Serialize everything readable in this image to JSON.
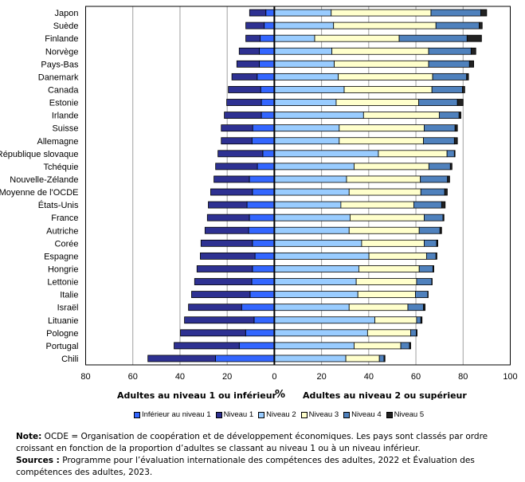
{
  "chart_data": {
    "type": "bar",
    "orientation": "horizontal",
    "stacked": "diverging",
    "title": "",
    "xlabel_left": "Adultes au niveau 1 ou inférieur",
    "xlabel_center": "%",
    "xlabel_right": "Adultes au niveau 2 ou supérieur",
    "xlim": [
      -80,
      100
    ],
    "xticks": [
      -80,
      -60,
      -40,
      -20,
      0,
      20,
      40,
      60,
      80,
      100
    ],
    "xtick_labels": [
      "80",
      "60",
      "40",
      "20",
      "0",
      "20",
      "40",
      "60",
      "80",
      "100"
    ],
    "grid": true,
    "legend_position": "bottom",
    "categories": [
      "Japon",
      "Suède",
      "Finlande",
      "Norvège",
      "Pays-Bas",
      "Danemark",
      "Canada",
      "Estonie",
      "Irlande",
      "Suisse",
      "Allemagne",
      "République slovaque",
      "Tchéquie",
      "Nouvelle-Zélande",
      "Moyenne de l'OCDE",
      "États-Unis",
      "France",
      "Autriche",
      "Corée",
      "Espagne",
      "Hongrie",
      "Lettonie",
      "Italie",
      "Israël",
      "Lituanie",
      "Pologne",
      "Portugal",
      "Chili"
    ],
    "series": [
      {
        "name": "Inférieur au niveau 1",
        "side": "negative",
        "color": "#3366ff",
        "values": [
          3.6,
          4.3,
          6.0,
          6.4,
          6.4,
          7.3,
          5.8,
          5.5,
          5.5,
          9.2,
          9.5,
          4.9,
          7.2,
          10.6,
          9.3,
          11.6,
          10.6,
          10.9,
          9.3,
          8.2,
          9.3,
          9.6,
          10.3,
          13.9,
          8.6,
          12.2,
          14.9,
          25.0
        ]
      },
      {
        "name": "Niveau 1",
        "side": "negative",
        "color": "#2e3192",
        "values": [
          6.9,
          7.8,
          6.1,
          8.5,
          9.5,
          10.7,
          13.7,
          14.7,
          15.7,
          13.3,
          13.0,
          19.0,
          17.7,
          15.0,
          17.7,
          16.4,
          17.8,
          18.5,
          21.8,
          23.2,
          23.5,
          24.2,
          24.8,
          22.5,
          29.5,
          27.6,
          27.6,
          28.6
        ]
      },
      {
        "name": "Niveau 2",
        "side": "positive",
        "color": "#99ccff",
        "values": [
          24.1,
          25.1,
          17.1,
          24.4,
          25.4,
          27.1,
          29.6,
          26.2,
          37.8,
          27.5,
          27.5,
          44.1,
          33.8,
          30.6,
          31.7,
          28.2,
          32.1,
          31.7,
          37.0,
          40.1,
          35.8,
          34.7,
          35.4,
          31.7,
          42.6,
          39.5,
          33.8,
          30.3
        ]
      },
      {
        "name": "Niveau 3",
        "side": "positive",
        "color": "#ffffcc",
        "values": [
          42.3,
          43.4,
          35.8,
          41.0,
          40.0,
          40.0,
          37.2,
          35.0,
          32.1,
          36.0,
          35.7,
          29.1,
          31.7,
          31.3,
          30.4,
          30.9,
          31.4,
          29.7,
          26.5,
          24.4,
          25.6,
          25.6,
          24.4,
          24.9,
          17.7,
          18.3,
          19.8,
          14.2
        ]
      },
      {
        "name": "Niveau 4",
        "side": "positive",
        "color": "#4f81bd",
        "values": [
          21.1,
          18.3,
          28.8,
          18.0,
          17.3,
          14.4,
          12.9,
          16.4,
          8.4,
          13.1,
          13.1,
          3.1,
          9.1,
          11.5,
          10.1,
          11.8,
          8.0,
          8.8,
          5.3,
          4.0,
          5.8,
          6.4,
          5.2,
          6.6,
          1.8,
          2.4,
          3.7,
          2.0
        ]
      },
      {
        "name": "Niveau 5",
        "side": "positive",
        "color": "#222222",
        "values": [
          2.5,
          1.3,
          6.1,
          2.0,
          1.8,
          0.8,
          1.0,
          2.4,
          0.8,
          1.0,
          1.3,
          0.3,
          0.7,
          0.9,
          1.1,
          1.5,
          0.4,
          0.7,
          0.5,
          0.4,
          0.4,
          0.2,
          0.2,
          0.7,
          0.5,
          0.3,
          0.5,
          0.4
        ]
      }
    ]
  },
  "legend": {
    "items": [
      {
        "label": "Inférieur au niveau 1",
        "color": "#3366ff"
      },
      {
        "label": "Niveau 1",
        "color": "#2e3192"
      },
      {
        "label": "Niveau 2",
        "color": "#99ccff"
      },
      {
        "label": "Niveau 3",
        "color": "#ffffcc"
      },
      {
        "label": "Niveau 4",
        "color": "#4f81bd"
      },
      {
        "label": "Niveau 5",
        "color": "#222222"
      }
    ]
  },
  "notes": {
    "note_label": "Note:",
    "note_text": " OCDE =  Organisation de coopération et de développement économiques. Les pays sont classés par ordre croissant en fonction de la proportion d’adultes se classant au niveau 1 ou à un niveau inférieur.",
    "sources_label": "Sources :",
    "sources_text": " Programme pour l’évaluation internationale des compétences des adultes, 2022 et Évaluation des compétences des adultes, 2023."
  }
}
